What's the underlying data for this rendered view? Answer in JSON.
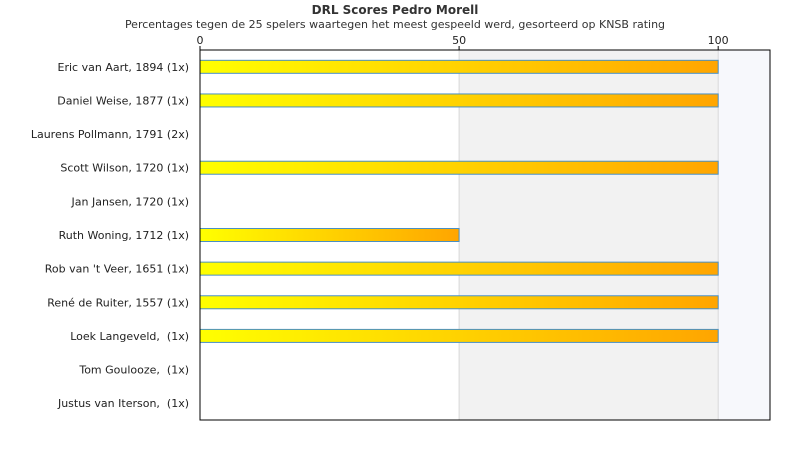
{
  "chart_data": {
    "type": "bar",
    "orientation": "horizontal",
    "title": "DRL Scores Pedro Morell",
    "subtitle": "Percentages tegen de 25 spelers waartegen het meest gespeeld werd, gesorteerd op KNSB rating",
    "xlabel": "",
    "ylabel": "",
    "xlim": [
      0,
      110
    ],
    "xticks": [
      0,
      50,
      100
    ],
    "xtick_labels": [
      "0",
      "50",
      "100"
    ],
    "x_axis_position": "top",
    "grid": true,
    "legend": "none",
    "categories": [
      "Eric van Aart, 1894 (1x)",
      "Daniel Weise, 1877 (1x)",
      "Laurens Pollmann, 1791 (2x)",
      "Scott Wilson, 1720 (1x)",
      "Jan Jansen, 1720 (1x)",
      "Ruth Woning, 1712 (1x)",
      "Rob van 't Veer, 1651 (1x)",
      "René de Ruiter, 1557 (1x)",
      "Loek Langeveld,  (1x)",
      "Tom Goulooze,  (1x)",
      "Justus van Iterson,  (1x)"
    ],
    "values": [
      100,
      100,
      0,
      100,
      0,
      50,
      100,
      100,
      100,
      0,
      0
    ],
    "colors": {
      "bar_start": "#ffff00",
      "bar_end": "#ffa500",
      "bar_border": "#4a90c2",
      "band_1": "#ffffff",
      "band_2": "#f2f2f2",
      "band_3": "#f7f8fc",
      "frame": "#000000"
    }
  }
}
